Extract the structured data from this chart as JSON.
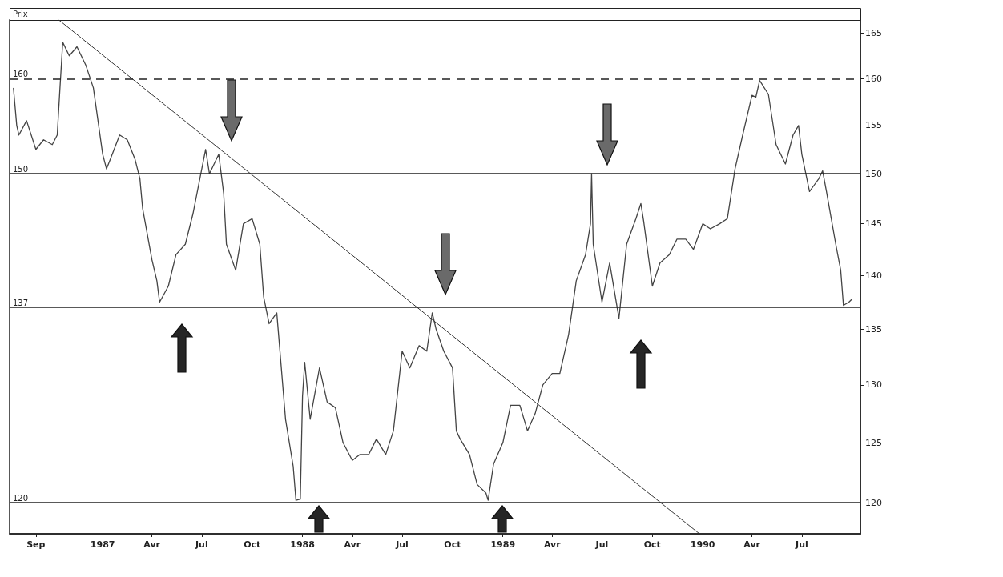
{
  "chart_data": {
    "type": "line",
    "ylabel": "Prix",
    "log": true,
    "marker": "none",
    "grid": false,
    "xlim": [
      "1986-07-15",
      "1990-10-16"
    ],
    "ylim": [
      117.5,
      166.5
    ],
    "xticks": [
      {
        "value": "1986-09",
        "label": "Sep"
      },
      {
        "value": "1987-01",
        "label": "1987"
      },
      {
        "value": "1987-04",
        "label": "Avr"
      },
      {
        "value": "1987-07",
        "label": "Jul"
      },
      {
        "value": "1987-10",
        "label": "Oct"
      },
      {
        "value": "1988-01",
        "label": "1988"
      },
      {
        "value": "1988-04",
        "label": "Avr"
      },
      {
        "value": "1988-07",
        "label": "Jul"
      },
      {
        "value": "1988-10",
        "label": "Oct"
      },
      {
        "value": "1989-01",
        "label": "1989"
      },
      {
        "value": "1989-04",
        "label": "Avr"
      },
      {
        "value": "1989-07",
        "label": "Jul"
      },
      {
        "value": "1989-10",
        "label": "Oct"
      },
      {
        "value": "1990-01",
        "label": "1990"
      },
      {
        "value": "1990-04",
        "label": "Avr"
      },
      {
        "value": "1990-07",
        "label": "Jul"
      }
    ],
    "yticks": [
      120,
      125,
      130,
      135,
      140,
      145,
      150,
      155,
      160,
      165
    ],
    "ref_lines": [
      {
        "axis": "y",
        "value": 160,
        "label": "160",
        "line_style": "dashed",
        "color": "#222222"
      },
      {
        "axis": "y",
        "value": 150,
        "label": "150",
        "color": "#222222"
      },
      {
        "axis": "y",
        "value": 137,
        "label": "137",
        "color": "#222222"
      },
      {
        "axis": "y",
        "value": 120,
        "label": "120",
        "color": "#222222"
      }
    ],
    "series": [
      {
        "color": "#444444",
        "x": [
          "1986-07-22",
          "1986-07-28",
          "1986-08-01",
          "1986-08-15",
          "1986-09-01",
          "1986-09-15",
          "1986-10-01",
          "1986-10-10",
          "1986-10-15",
          "1986-10-20",
          "1986-11-01",
          "1986-11-15",
          "1986-12-01",
          "1986-12-15",
          "1987-01-01",
          "1987-01-08",
          "1987-01-15",
          "1987-02-01",
          "1987-02-15",
          "1987-03-01",
          "1987-03-10",
          "1987-03-15",
          "1987-04-01",
          "1987-04-10",
          "1987-04-15",
          "1987-05-01",
          "1987-05-15",
          "1987-06-01",
          "1987-06-15",
          "1987-07-01",
          "1987-07-08",
          "1987-07-15",
          "1987-08-01",
          "1987-08-10",
          "1987-08-15",
          "1987-09-01",
          "1987-09-15",
          "1987-10-01",
          "1987-10-15",
          "1987-10-22",
          "1987-11-01",
          "1987-11-15",
          "1987-12-01",
          "1987-12-15",
          "1987-12-20",
          "1987-12-28",
          "1988-01-01",
          "1988-01-05",
          "1988-01-15",
          "1988-02-01",
          "1988-02-15",
          "1988-03-01",
          "1988-03-15",
          "1988-04-01",
          "1988-04-15",
          "1988-05-01",
          "1988-05-15",
          "1988-06-01",
          "1988-06-15",
          "1988-07-01",
          "1988-07-15",
          "1988-08-01",
          "1988-08-15",
          "1988-08-25",
          "1988-09-01",
          "1988-09-15",
          "1988-10-01",
          "1988-10-08",
          "1988-10-15",
          "1988-11-01",
          "1988-11-15",
          "1988-12-01",
          "1988-12-05",
          "1988-12-15",
          "1989-01-01",
          "1989-01-15",
          "1989-02-01",
          "1989-02-15",
          "1989-03-01",
          "1989-03-15",
          "1989-04-01",
          "1989-04-15",
          "1989-05-01",
          "1989-05-15",
          "1989-06-01",
          "1989-06-10",
          "1989-06-12",
          "1989-06-15",
          "1989-07-01",
          "1989-07-15",
          "1989-08-01",
          "1989-08-15",
          "1989-09-01",
          "1989-09-10",
          "1989-09-15",
          "1989-10-01",
          "1989-10-15",
          "1989-11-01",
          "1989-11-15",
          "1989-12-01",
          "1989-12-15",
          "1990-01-01",
          "1990-01-15",
          "1990-02-01",
          "1990-02-15",
          "1990-03-01",
          "1990-03-15",
          "1990-04-01",
          "1990-04-08",
          "1990-04-15",
          "1990-05-01",
          "1990-05-15",
          "1990-06-01",
          "1990-06-15",
          "1990-06-25",
          "1990-07-01",
          "1990-07-15",
          "1990-08-01",
          "1990-08-08",
          "1990-08-15",
          "1990-09-01",
          "1990-09-10",
          "1990-09-15",
          "1990-09-25",
          "1990-10-01"
        ],
        "values": [
          159,
          155,
          154,
          155.5,
          152.5,
          153.5,
          153,
          154,
          159,
          164,
          162.5,
          163.5,
          161.5,
          159,
          152,
          150.5,
          151.5,
          154,
          153.5,
          151.5,
          149.5,
          146.5,
          141.5,
          139.5,
          137.5,
          139,
          142,
          143,
          146,
          150.5,
          152.5,
          150,
          152,
          148,
          143,
          140.5,
          145,
          145.5,
          143,
          138,
          135.5,
          136.5,
          127,
          123,
          120.2,
          120.3,
          129,
          132,
          127,
          131.5,
          128.5,
          128,
          125,
          123.5,
          124,
          124,
          125.3,
          124,
          126,
          133,
          131.5,
          133.5,
          133,
          136.5,
          135,
          133,
          131.5,
          126,
          125.3,
          124,
          121.5,
          120.8,
          120.2,
          123.2,
          125,
          128.2,
          128.2,
          126,
          127.5,
          130,
          131,
          131,
          134.5,
          139.5,
          142,
          145,
          150,
          143,
          137.5,
          141.2,
          136,
          143,
          145.5,
          147,
          145.3,
          139,
          141.2,
          142,
          143.5,
          143.5,
          142.5,
          145,
          144.5,
          145,
          145.5,
          150.5,
          154,
          158.2,
          158,
          159.8,
          158.3,
          153,
          151,
          154,
          155,
          152,
          148.2,
          149.5,
          150.3,
          148.2,
          143,
          140.5,
          137.2,
          137.5,
          137.8
        ]
      },
      {
        "color": "#333333",
        "x": [
          "1986-10-13",
          "1989-12-26"
        ],
        "values": [
          166.5,
          117.5
        ]
      }
    ]
  }
}
